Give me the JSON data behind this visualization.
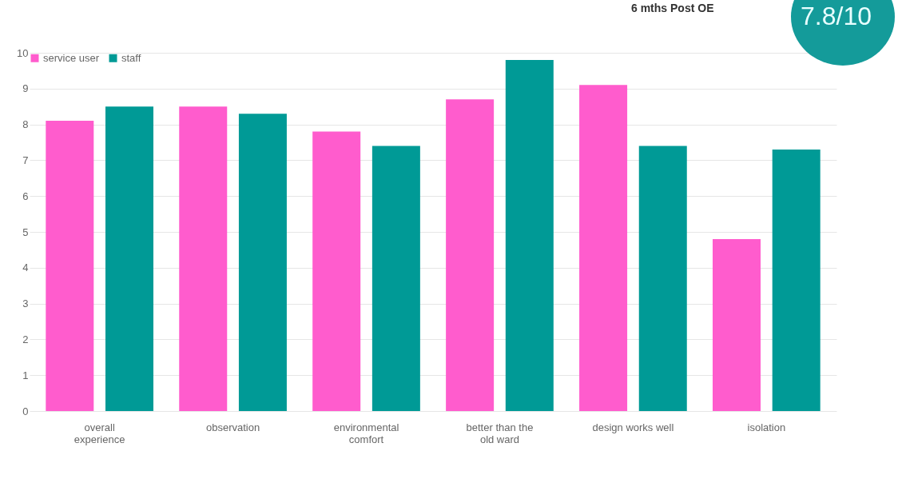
{
  "chart_data": {
    "type": "bar",
    "categories": [
      "overall experience",
      "observation",
      "environmental comfort",
      "better than the old ward",
      "design works well",
      "isolation"
    ],
    "series": [
      {
        "name": "service user",
        "color": "#ff5ccd",
        "values": [
          8.1,
          8.5,
          7.8,
          8.7,
          9.1,
          4.8
        ]
      },
      {
        "name": "staff",
        "color": "#009a96",
        "values": [
          8.5,
          8.3,
          7.4,
          9.8,
          7.4,
          7.3
        ]
      }
    ],
    "ylim": [
      0,
      10
    ],
    "yticks": [
      0,
      1,
      2,
      3,
      4,
      5,
      6,
      7,
      8,
      9,
      10
    ],
    "grid": "y",
    "legend": "top left",
    "annotations": [
      "6 mths Post OE",
      "7.8/10"
    ]
  }
}
